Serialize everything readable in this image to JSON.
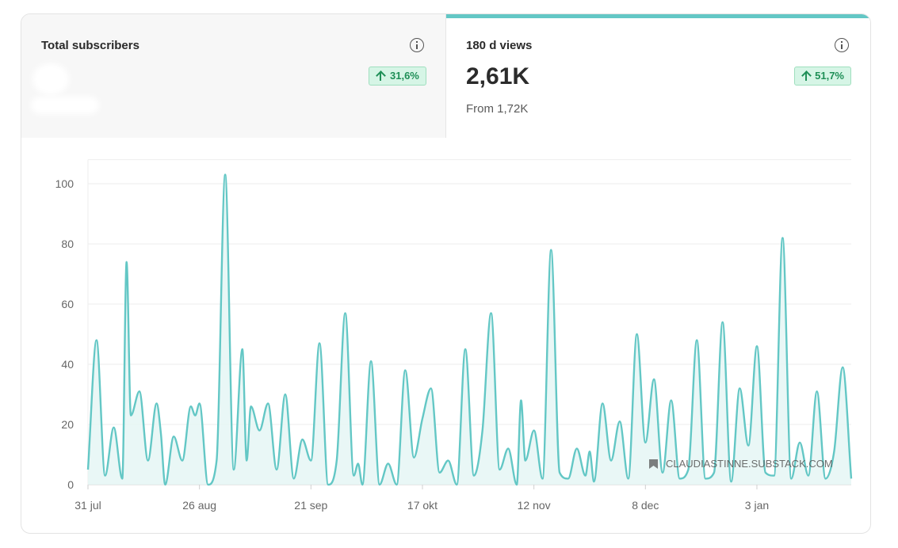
{
  "stats": {
    "subscribers": {
      "label": "Total subscribers",
      "change": "31,6%"
    },
    "views": {
      "label": "180 d views",
      "value": "2,61K",
      "from": "From 1,72K",
      "change": "51,7%"
    }
  },
  "watermark": {
    "text": "CLAUDIASTINNE.SUBSTACK.COM"
  },
  "colors": {
    "line": "#63c7c5",
    "fill": "#e4f5f4",
    "badge_text": "#1f8f57",
    "badge_bg": "#d6f5e6"
  },
  "chart_data": {
    "type": "area",
    "ylim": [
      0,
      108
    ],
    "yticks": [
      0,
      20,
      40,
      60,
      80,
      100
    ],
    "x_tick_labels": [
      "31 jul",
      "26 aug",
      "21 sep",
      "17 okt",
      "12 nov",
      "8 dec",
      "3 jan"
    ],
    "x_tick_positions": [
      0,
      26,
      52,
      78,
      104,
      130,
      156
    ],
    "grid": true,
    "legend": "none",
    "series": [
      {
        "x": [
          0,
          2,
          4,
          6,
          8,
          9,
          10,
          12,
          14,
          16,
          17,
          18,
          20,
          22,
          24,
          25,
          26,
          28,
          30,
          32,
          34,
          36,
          37,
          38,
          40,
          42,
          44,
          46,
          48,
          50,
          52,
          54,
          56,
          58,
          60,
          62,
          63,
          64,
          66,
          68,
          70,
          72,
          74,
          76,
          78,
          80,
          82,
          84,
          86,
          88,
          90,
          92,
          94,
          96,
          98,
          100,
          101,
          102,
          104,
          106,
          108,
          110,
          112,
          114,
          116,
          117,
          118,
          120,
          122,
          124,
          126,
          128,
          130,
          132,
          134,
          136,
          138,
          140,
          142,
          144,
          146,
          148,
          150,
          152,
          154,
          156,
          158,
          160,
          162,
          164,
          166,
          168,
          170,
          172,
          174,
          176,
          178
        ],
        "y": [
          5,
          48,
          3,
          19,
          2,
          74,
          23,
          31,
          8,
          27,
          17,
          0,
          16,
          8,
          26,
          23,
          27,
          0,
          8,
          103,
          5,
          45,
          8,
          26,
          18,
          27,
          5,
          30,
          2,
          15,
          8,
          47,
          0,
          8,
          57,
          3,
          7,
          0,
          41,
          0,
          7,
          0,
          38,
          9,
          22,
          32,
          4,
          8,
          0,
          45,
          3,
          18,
          57,
          5,
          12,
          0,
          28,
          8,
          18,
          2,
          78,
          4,
          2,
          12,
          3,
          11,
          1,
          27,
          8,
          21,
          2,
          50,
          14,
          35,
          4,
          28,
          2,
          5,
          48,
          2,
          4,
          54,
          1,
          32,
          13,
          46,
          4,
          3,
          82,
          2,
          14,
          3,
          31,
          2,
          11,
          39,
          2
        ]
      }
    ]
  }
}
